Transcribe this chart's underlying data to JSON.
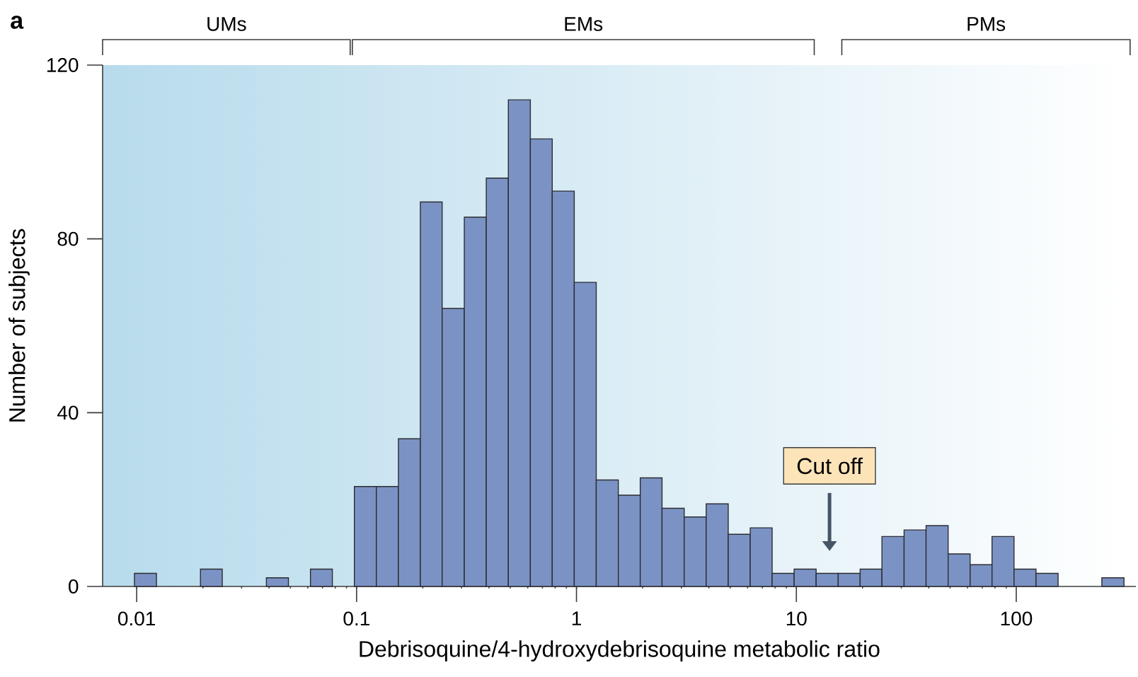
{
  "chart_data": {
    "type": "histogram",
    "xlabel": "Debrisoquine/4-hydroxydebrisoquine metabolic ratio",
    "ylabel": "Number of subjects",
    "log": "x",
    "bins": [
      0.00977,
      0.0123,
      0.0155,
      0.0195,
      0.0245,
      0.0309,
      0.0389,
      0.049,
      0.0617,
      0.0776,
      0.0977,
      0.123,
      0.155,
      0.195,
      0.245,
      0.309,
      0.389,
      0.49,
      0.617,
      0.776,
      0.977,
      1.23,
      1.55,
      1.95,
      2.45,
      3.09,
      3.89,
      4.9,
      6.17,
      7.76,
      9.77,
      12.3,
      15.5,
      19.5,
      24.5,
      30.9,
      38.9,
      49,
      61.7,
      77.6,
      97.7,
      123,
      155,
      195,
      245,
      309
    ],
    "values": [
      3,
      0,
      0,
      4,
      0,
      0,
      2,
      0,
      4,
      0,
      23,
      23,
      34,
      88.5,
      64,
      85,
      94,
      112,
      103,
      91,
      70,
      24.5,
      21,
      25,
      18,
      16,
      19,
      12,
      13.5,
      3,
      4,
      3,
      3,
      4,
      11.5,
      13,
      14,
      7.5,
      5,
      11.5,
      4,
      3,
      0,
      0,
      2
    ],
    "color": "#7b93c4",
    "xlim": [
      0.007,
      350
    ],
    "ylim": [
      0,
      120
    ],
    "xticks": [
      0.01,
      0.1,
      1,
      10,
      100
    ],
    "yticks": [
      0,
      40,
      80,
      120
    ],
    "annotations": [
      "a",
      "UMs",
      "EMs",
      "PMs",
      "Cut off"
    ],
    "grid": false
  }
}
